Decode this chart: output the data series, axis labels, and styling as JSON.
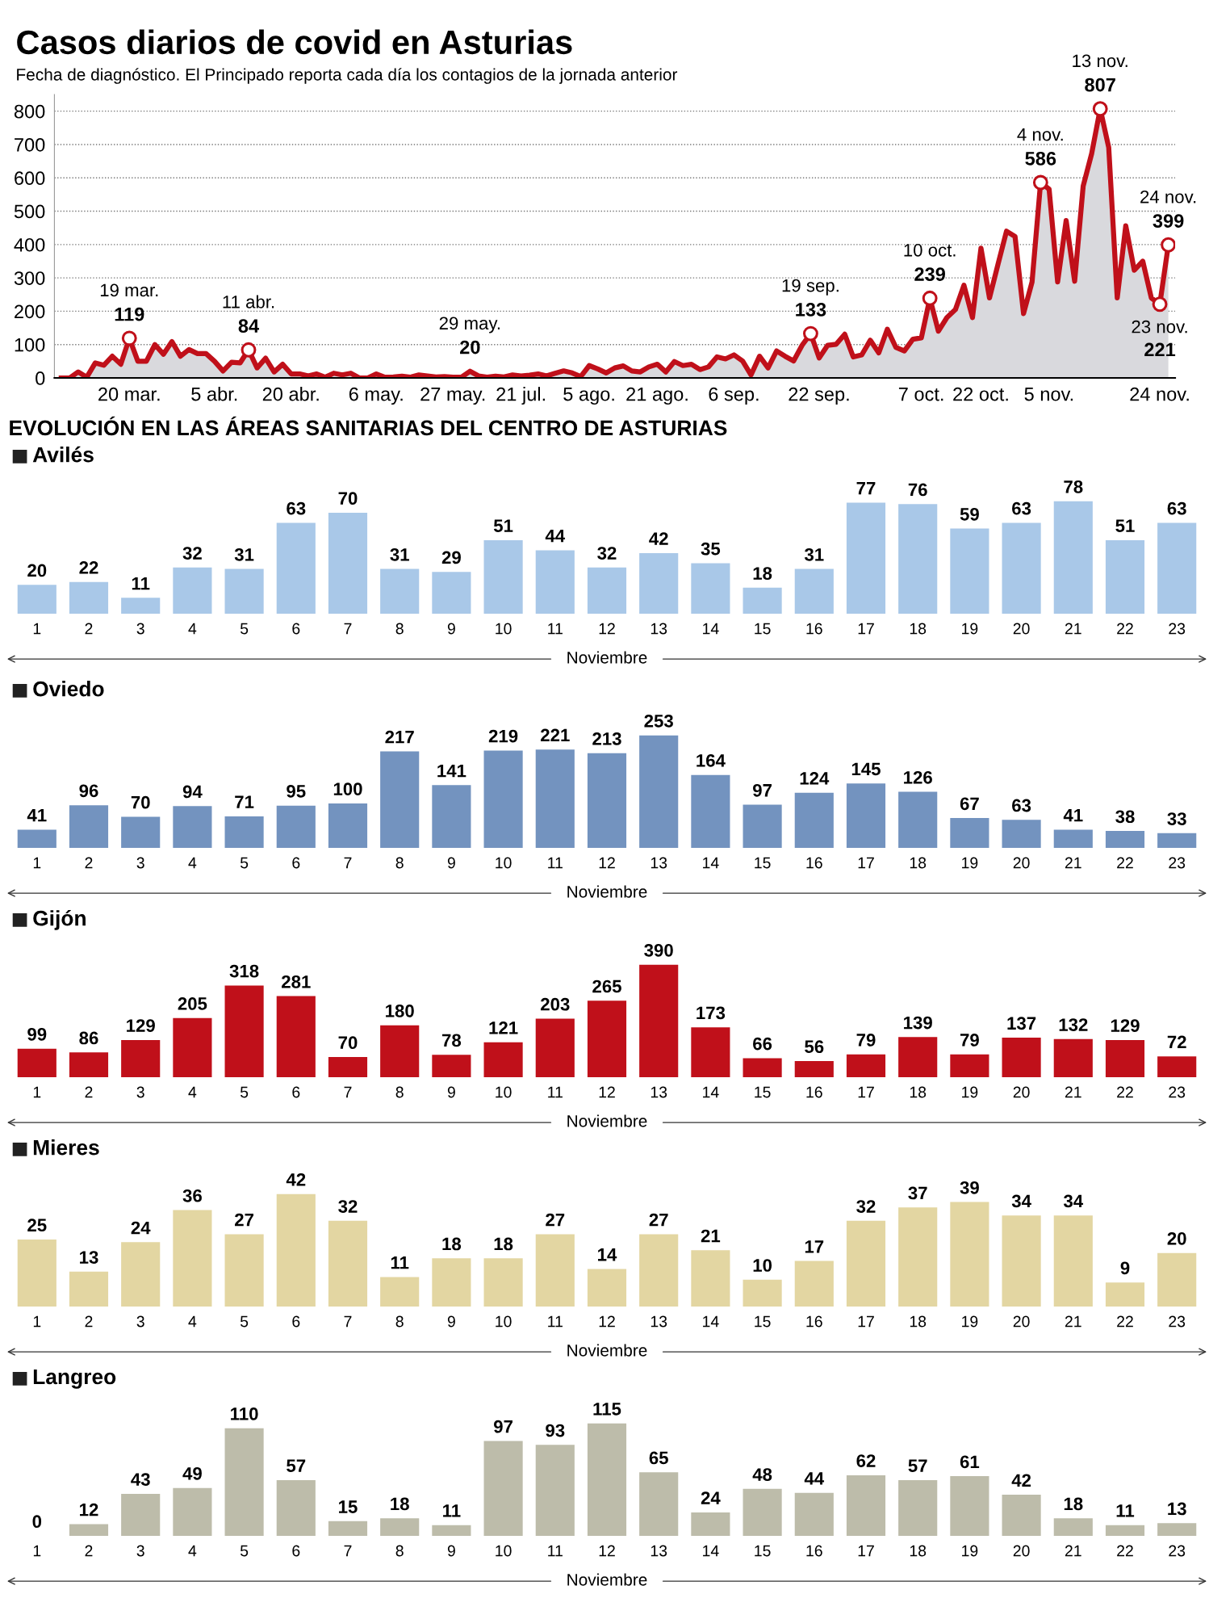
{
  "chart_data": [
    {
      "type": "area",
      "title": "Casos diarios de covid en Asturias",
      "subtitle": "Fecha de diagnóstico. El Principado reporta cada día los contagios de la jornada anterior",
      "ylim": [
        0,
        850
      ],
      "yticks": [
        0,
        100,
        200,
        300,
        400,
        500,
        600,
        700,
        800
      ],
      "categories": [
        null,
        null,
        null,
        null,
        null,
        null,
        null,
        null,
        "20 mar.",
        null,
        null,
        null,
        null,
        null,
        null,
        null,
        null,
        null,
        "5 abr.",
        null,
        null,
        null,
        null,
        null,
        null,
        null,
        null,
        "20 abr.",
        null,
        null,
        null,
        null,
        null,
        null,
        null,
        null,
        null,
        "6 may.",
        null,
        null,
        null,
        null,
        null,
        null,
        null,
        null,
        "27 may.",
        null,
        null,
        null,
        null,
        null,
        null,
        null,
        "21 jul.",
        null,
        null,
        null,
        null,
        null,
        null,
        null,
        "5 ago.",
        null,
        null,
        null,
        null,
        null,
        null,
        null,
        "21 ago.",
        null,
        null,
        null,
        null,
        null,
        null,
        null,
        null,
        "6 sep.",
        null,
        null,
        null,
        null,
        null,
        null,
        null,
        null,
        null,
        "22 sep.",
        null,
        null,
        null,
        null,
        null,
        null,
        null,
        null,
        null,
        null,
        null,
        "7 oct.",
        null,
        null,
        null,
        null,
        null,
        null,
        "22 oct.",
        null,
        null,
        null,
        null,
        null,
        null,
        null,
        "5 nov.",
        null,
        null,
        null,
        null,
        null,
        null,
        null,
        null,
        null,
        null,
        null,
        null,
        "24 nov.",
        null
      ],
      "grid": "y",
      "legend": false,
      "marker": "none",
      "line_style": "solid",
      "series": [
        {
          "color": "#c0101a",
          "values": [
            0,
            0,
            18,
            2,
            45,
            38,
            65,
            41,
            119,
            50,
            50,
            100,
            71,
            109,
            65,
            85,
            73,
            73,
            50,
            21,
            47,
            45,
            84,
            30,
            59,
            18,
            41,
            12,
            12,
            6,
            12,
            2,
            14,
            9,
            14,
            0,
            0,
            12,
            2,
            3,
            5,
            2,
            9,
            6,
            3,
            4,
            2,
            2,
            20,
            6,
            2,
            5,
            3,
            9,
            6,
            8,
            12,
            6,
            14,
            21,
            15,
            4,
            37,
            27,
            15,
            30,
            36,
            21,
            18,
            33,
            41,
            18,
            49,
            37,
            41,
            25,
            33,
            63,
            57,
            69,
            51,
            9,
            65,
            30,
            81,
            65,
            51,
            98,
            133,
            60,
            98,
            101,
            131,
            63,
            69,
            113,
            75,
            146,
            92,
            81,
            116,
            120,
            239,
            140,
            181,
            205,
            278,
            181,
            389,
            240,
            341,
            440,
            424,
            193,
            288,
            586,
            566,
            288,
            472,
            290,
            575,
            673,
            807,
            691,
            240,
            456,
            323,
            350,
            240,
            221,
            399
          ]
        },
        {
          "type": "scatter",
          "marker": "circle",
          "color": "#c0101a",
          "values": [
            null,
            null,
            null,
            null,
            null,
            null,
            null,
            null,
            119,
            null,
            null,
            null,
            null,
            null,
            null,
            null,
            null,
            null,
            null,
            null,
            null,
            null,
            84,
            null,
            null,
            null,
            null,
            null,
            null,
            null,
            null,
            null,
            null,
            null,
            null,
            null,
            null,
            null,
            null,
            null,
            null,
            null,
            null,
            null,
            null,
            null,
            null,
            null,
            null,
            null,
            null,
            null,
            null,
            null,
            null,
            null,
            null,
            null,
            null,
            null,
            null,
            null,
            null,
            null,
            null,
            null,
            null,
            null,
            null,
            null,
            null,
            null,
            null,
            null,
            null,
            null,
            null,
            null,
            null,
            null,
            null,
            null,
            null,
            null,
            null,
            null,
            null,
            null,
            133,
            null,
            null,
            null,
            null,
            null,
            null,
            null,
            null,
            null,
            null,
            null,
            null,
            null,
            239,
            null,
            null,
            null,
            null,
            null,
            null,
            null,
            null,
            null,
            null,
            null,
            null,
            586,
            null,
            null,
            null,
            null,
            null,
            null,
            807,
            null,
            null,
            null,
            null,
            null,
            null,
            221,
            399
          ]
        }
      ],
      "annotations": [
        {
          "text": "19 mar.",
          "y": 119
        },
        {
          "text": "119",
          "y": 119
        },
        {
          "text": "11 abr.",
          "y": 84
        },
        {
          "text": "84",
          "y": 84
        },
        {
          "text": "29 may.",
          "y": 20
        },
        {
          "text": "20",
          "y": 20
        },
        {
          "text": "19 sep.",
          "y": 133
        },
        {
          "text": "133",
          "y": 133
        },
        {
          "text": "10 oct.",
          "y": 239
        },
        {
          "text": "239",
          "y": 239
        },
        {
          "text": "4 nov.",
          "y": 586
        },
        {
          "text": "586",
          "y": 586
        },
        {
          "text": "13 nov.",
          "y": 807
        },
        {
          "text": "807",
          "y": 807
        },
        {
          "text": "23 nov.",
          "y": 221
        },
        {
          "text": "221",
          "y": 221
        },
        {
          "text": "24 nov.",
          "y": 399
        },
        {
          "text": "399",
          "y": 399
        }
      ]
    },
    {
      "type": "bar",
      "title": "Avilés",
      "annotations": [
        "EVOLUCIÓN EN LAS ÁREAS SANITARIAS DEL CENTRO DE ASTURIAS",
        "Noviembre"
      ],
      "data_labels": true,
      "tick_labels": "x",
      "categories": [
        "1",
        "2",
        "3",
        "4",
        "5",
        "6",
        "7",
        "8",
        "9",
        "10",
        "11",
        "12",
        "13",
        "14",
        "15",
        "16",
        "17",
        "18",
        "19",
        "20",
        "21",
        "22",
        "23"
      ],
      "series": [
        {
          "color": "#a9c8e8",
          "values": [
            20,
            22,
            11,
            32,
            31,
            63,
            70,
            31,
            29,
            51,
            44,
            32,
            42,
            35,
            18,
            31,
            77,
            76,
            59,
            63,
            78,
            51,
            63
          ]
        }
      ]
    },
    {
      "type": "bar",
      "title": "Oviedo",
      "annotations": [
        "Noviembre"
      ],
      "data_labels": true,
      "tick_labels": "x",
      "categories": [
        "1",
        "2",
        "3",
        "4",
        "5",
        "6",
        "7",
        "8",
        "9",
        "10",
        "11",
        "12",
        "13",
        "14",
        "15",
        "16",
        "17",
        "18",
        "19",
        "20",
        "21",
        "22",
        "23"
      ],
      "series": [
        {
          "color": "#7393bf",
          "values": [
            41,
            96,
            70,
            94,
            71,
            95,
            100,
            217,
            141,
            219,
            221,
            213,
            253,
            164,
            97,
            124,
            145,
            126,
            67,
            63,
            41,
            38,
            33
          ]
        }
      ]
    },
    {
      "type": "bar",
      "title": "Gijón",
      "annotations": [
        "Noviembre"
      ],
      "data_labels": true,
      "tick_labels": "x",
      "categories": [
        "1",
        "2",
        "3",
        "4",
        "5",
        "6",
        "7",
        "8",
        "9",
        "10",
        "11",
        "12",
        "13",
        "14",
        "15",
        "16",
        "17",
        "18",
        "19",
        "20",
        "21",
        "22",
        "23"
      ],
      "series": [
        {
          "color": "#c0101a",
          "values": [
            99,
            86,
            129,
            205,
            318,
            281,
            70,
            180,
            78,
            121,
            203,
            265,
            390,
            173,
            66,
            56,
            79,
            139,
            79,
            137,
            132,
            129,
            72
          ]
        }
      ]
    },
    {
      "type": "bar",
      "title": "Mieres",
      "annotations": [
        "Noviembre"
      ],
      "data_labels": true,
      "tick_labels": "x",
      "categories": [
        "1",
        "2",
        "3",
        "4",
        "5",
        "6",
        "7",
        "8",
        "9",
        "10",
        "11",
        "12",
        "13",
        "14",
        "15",
        "16",
        "17",
        "18",
        "19",
        "20",
        "21",
        "22",
        "23"
      ],
      "series": [
        {
          "color": "#e3d6a2",
          "values": [
            25,
            13,
            24,
            36,
            27,
            42,
            32,
            11,
            18,
            18,
            27,
            14,
            27,
            21,
            10,
            17,
            32,
            37,
            39,
            34,
            34,
            9,
            20
          ]
        }
      ]
    },
    {
      "type": "bar",
      "title": "Langreo",
      "annotations": [
        "Noviembre"
      ],
      "data_labels": true,
      "tick_labels": "x",
      "categories": [
        "1",
        "2",
        "3",
        "4",
        "5",
        "6",
        "7",
        "8",
        "9",
        "10",
        "11",
        "12",
        "13",
        "14",
        "15",
        "16",
        "17",
        "18",
        "19",
        "20",
        "21",
        "22",
        "23"
      ],
      "series": [
        {
          "color": "#bdbcaa",
          "values": [
            0,
            12,
            43,
            49,
            110,
            57,
            15,
            18,
            11,
            97,
            93,
            115,
            65,
            24,
            48,
            44,
            62,
            57,
            61,
            42,
            18,
            11,
            13
          ]
        }
      ]
    }
  ]
}
